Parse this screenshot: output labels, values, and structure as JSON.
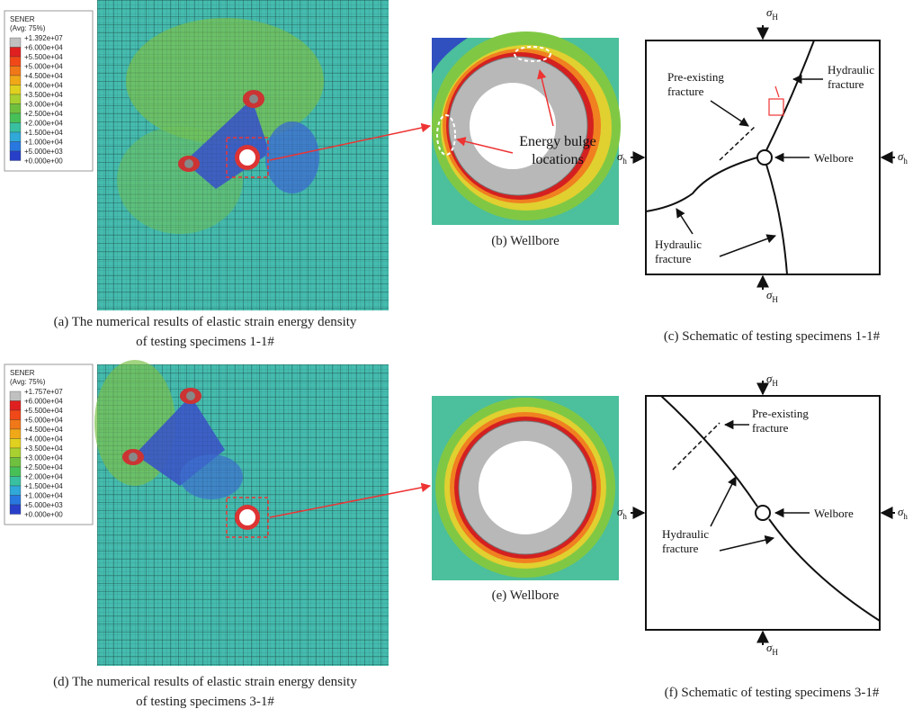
{
  "panel_a": {
    "legend": {
      "title": "SENER",
      "subtitle": "(Avg: 75%)",
      "labels": [
        "+1.392e+07",
        "+6.000e+04",
        "+5.500e+04",
        "+5.000e+04",
        "+4.500e+04",
        "+4.000e+04",
        "+3.500e+04",
        "+3.000e+04",
        "+2.500e+04",
        "+2.000e+04",
        "+1.500e+04",
        "+1.000e+04",
        "+5.000e+03",
        "+0.000e+00"
      ]
    },
    "caption": [
      "(a) The numerical results of elastic strain energy density",
      "of testing specimens 1-1#"
    ]
  },
  "panel_b": {
    "annotation": [
      "Energy bulge",
      "locations"
    ],
    "caption": "(b) Wellbore"
  },
  "panel_c": {
    "sigma_top": {
      "symbol": "σ",
      "sub": "H"
    },
    "sigma_bottom": {
      "symbol": "σ",
      "sub": "H"
    },
    "sigma_left": {
      "symbol": "σ",
      "sub": "h"
    },
    "sigma_right": {
      "symbol": "σ",
      "sub": "h"
    },
    "pre_existing": [
      "Pre-existing",
      "fracture"
    ],
    "hydraulic_1": [
      "Hydraulic",
      "fracture"
    ],
    "wellbore": "Welbore",
    "hydraulic_2": [
      "Hydraulic",
      "fracture"
    ],
    "caption": "(c)  Schematic of testing specimens 1-1#"
  },
  "panel_d": {
    "legend": {
      "title": "SENER",
      "subtitle": "(Avg: 75%)",
      "labels": [
        "+1.757e+07",
        "+6.000e+04",
        "+5.500e+04",
        "+5.000e+04",
        "+4.500e+04",
        "+4.000e+04",
        "+3.500e+04",
        "+3.000e+04",
        "+2.500e+04",
        "+2.000e+04",
        "+1.500e+04",
        "+1.000e+04",
        "+5.000e+03",
        "+0.000e+00"
      ]
    },
    "caption": [
      "(d) The numerical results of elastic strain energy density",
      "of testing specimens 3-1#"
    ]
  },
  "panel_e": {
    "caption": "(e) Wellbore"
  },
  "panel_f": {
    "sigma_top": {
      "symbol": "σ",
      "sub": "H"
    },
    "sigma_bottom": {
      "symbol": "σ",
      "sub": "H"
    },
    "sigma_left": {
      "symbol": "σ",
      "sub": "h"
    },
    "sigma_right": {
      "symbol": "σ",
      "sub": "h"
    },
    "pre_existing": [
      "Pre-existing",
      "fracture"
    ],
    "hydraulic": [
      "Hydraulic",
      "fracture"
    ],
    "wellbore": "Welbore",
    "caption": "(f)  Schematic of testing specimens 3-1#"
  }
}
